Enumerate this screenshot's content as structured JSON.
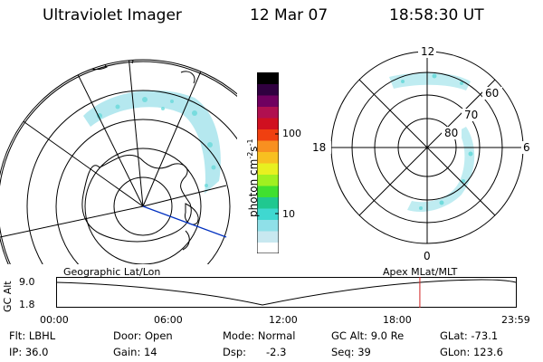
{
  "header": {
    "title": "Ultraviolet Imager",
    "date": "12 Mar 07",
    "time": "18:58:30 UT"
  },
  "colorbar": {
    "unit": "photon cm",
    "unit_sup1": "-2",
    "unit_mid": "s",
    "unit_sup2": "-1",
    "ticks": [
      "100",
      "10"
    ],
    "colors": [
      "#ffffff",
      "#c8e8f0",
      "#8fe0e8",
      "#3fd8d0",
      "#20c890",
      "#40e030",
      "#a0f020",
      "#e8f020",
      "#f8c020",
      "#f89020",
      "#f04010",
      "#d01020",
      "#b01050",
      "#700060",
      "#300040",
      "#000000"
    ]
  },
  "polar_plot": {
    "labels_mlt": [
      "12",
      "18",
      "6",
      "0"
    ],
    "labels_lat": [
      "60",
      "70",
      "80"
    ]
  },
  "timeline": {
    "left_title": "Geographic Lat/Lon",
    "right_title": "Apex  MLat/MLT",
    "y_label": "GC Alt",
    "y_ticks": [
      "9.0",
      "1.8"
    ],
    "x_ticks": [
      "00:00",
      "06:00",
      "12:00",
      "18:00",
      "23:59"
    ],
    "current_time_hours": 18.975
  },
  "footer": {
    "flt": "Flt: LBHL",
    "ip": "IP: 36.0",
    "door": "Door: Open",
    "gain": "Gain: 14",
    "mode": "Mode: Normal",
    "dsp_label": "Dsp:",
    "dsp_value": "-2.3",
    "gc_alt": "GC Alt: 9.0 Re",
    "seq": "Seq: 39",
    "glat": "GLat: -73.1",
    "glon": "GLon: 123.6"
  }
}
